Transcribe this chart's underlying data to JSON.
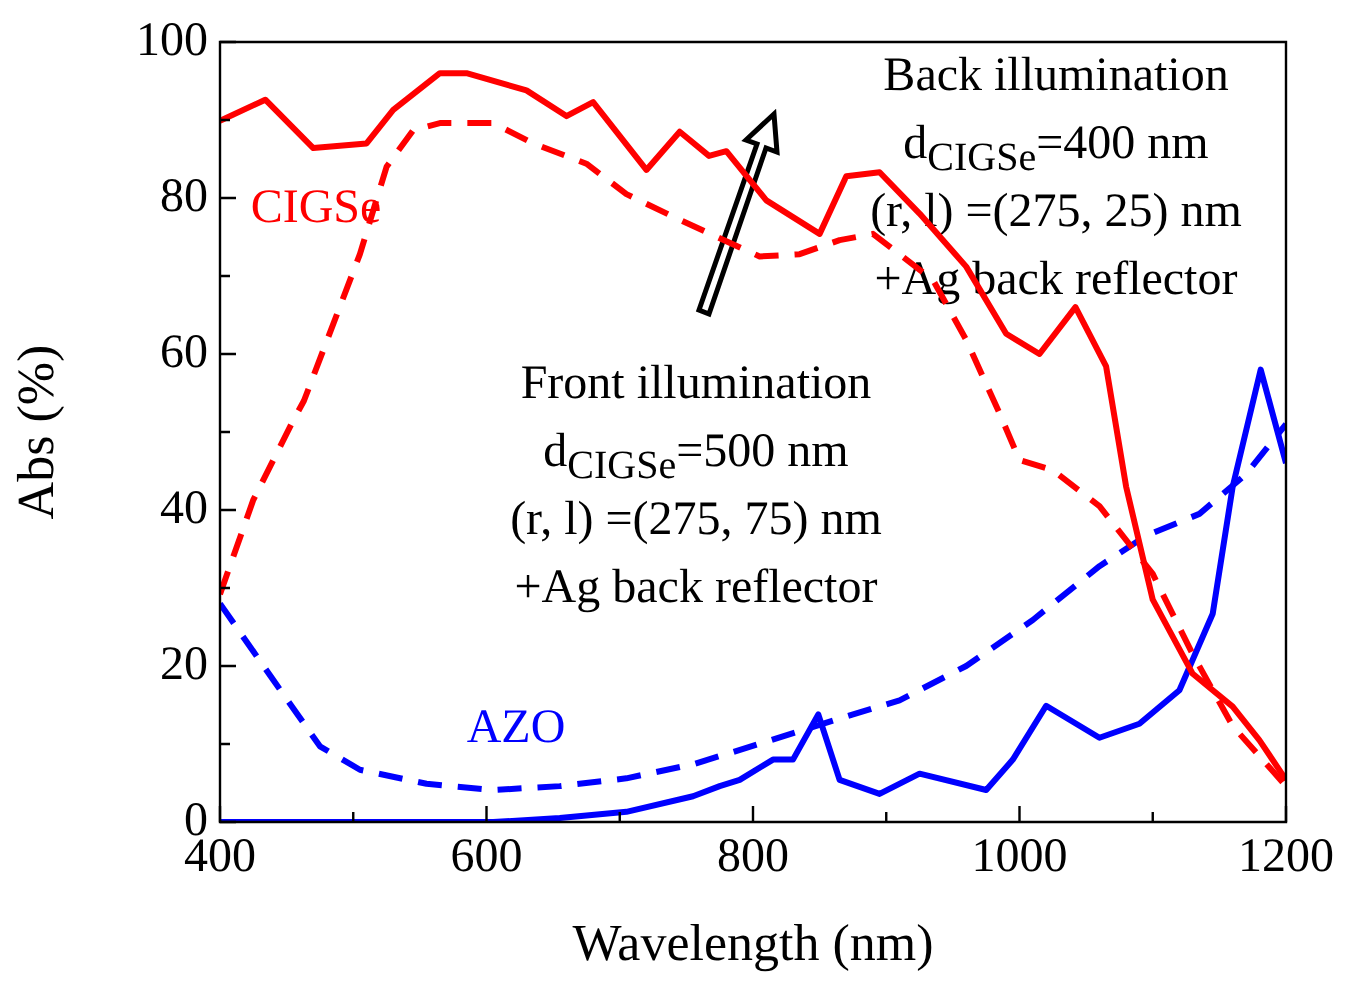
{
  "chart_data": {
    "type": "line",
    "xlabel": "Wavelength (nm)",
    "ylabel": "Abs (%)",
    "xlim": [
      400,
      1200
    ],
    "xticks": [
      400,
      {
        "value": 500,
        "label": null
      },
      600,
      {
        "value": 700,
        "label": null
      },
      800,
      {
        "value": 900,
        "label": null
      },
      1000,
      {
        "value": 1100,
        "label": null
      },
      1200
    ],
    "ylim": [
      0,
      100
    ],
    "yticks": [
      0,
      {
        "value": 10,
        "label": null
      },
      20,
      {
        "value": 30,
        "label": null
      },
      40,
      {
        "value": 50,
        "label": null
      },
      60,
      {
        "value": 70,
        "label": null
      },
      80,
      {
        "value": 90,
        "label": null
      },
      100
    ],
    "marker": "none",
    "legend": false,
    "series": [
      {
        "color": "#ff0000",
        "line_style": "solid",
        "x": [
          400,
          434,
          470,
          510,
          530,
          565,
          585,
          630,
          660,
          680,
          720,
          745,
          767,
          780,
          810,
          850,
          870,
          895,
          925,
          960,
          990,
          1015,
          1042,
          1065,
          1080,
          1100,
          1130,
          1160,
          1180,
          1200
        ],
        "values": [
          89.9,
          92.6,
          86.4,
          87,
          91.3,
          96,
          96,
          93.8,
          90.5,
          92.3,
          83.6,
          88.5,
          85.4,
          86,
          79.7,
          75.4,
          82.8,
          83.3,
          78,
          71.2,
          62.6,
          60,
          66,
          58.4,
          43,
          28.5,
          19,
          14.8,
          10.5,
          5.4
        ]
      },
      {
        "color": "#ff0000",
        "line_style": "dashed",
        "x": [
          400,
          425,
          455,
          463,
          505,
          525,
          545,
          565,
          605,
          635,
          675,
          705,
          745,
          805,
          835,
          865,
          890,
          935,
          960,
          985,
          1000,
          1025,
          1060,
          1100,
          1130,
          1160,
          1200
        ],
        "values": [
          29.2,
          41.3,
          51.5,
          54,
          72.8,
          84,
          88.7,
          89.6,
          89.6,
          87,
          84.4,
          80.5,
          77.2,
          72.5,
          72.8,
          74.6,
          75.4,
          69.5,
          61.8,
          52.4,
          46.4,
          45.1,
          40.5,
          31.8,
          21.5,
          12.3,
          4.6
        ]
      },
      {
        "color": "#0000ff",
        "line_style": "solid",
        "x": [
          400,
          605,
          655,
          705,
          755,
          775,
          790,
          815,
          830,
          849,
          865,
          895,
          925,
          975,
          995,
          1020,
          1060,
          1090,
          1120,
          1145,
          1160,
          1181,
          1200
        ],
        "values": [
          0,
          0,
          0.5,
          1.3,
          3.3,
          4.6,
          5.4,
          8,
          8,
          13.8,
          5.4,
          3.6,
          6.2,
          4.1,
          8,
          14.9,
          10.8,
          12.6,
          16.9,
          26.7,
          43,
          58,
          46
        ]
      },
      {
        "color": "#0000ff",
        "line_style": "dashed",
        "x": [
          400,
          440,
          475,
          505,
          555,
          605,
          655,
          705,
          755,
          795,
          860,
          910,
          960,
          1010,
          1060,
          1095,
          1135,
          1170,
          1200
        ],
        "values": [
          28,
          18.2,
          9.7,
          6.7,
          4.9,
          4.1,
          4.6,
          5.6,
          7.4,
          9.5,
          13,
          15.6,
          20,
          25.9,
          32.8,
          36.7,
          39.5,
          44.6,
          51
        ]
      }
    ],
    "annotations": [
      "CIGSe",
      "AZO",
      "Back illumination",
      "d$_{CIGSe}$=400 nm",
      "(r, l) =(275, 25) nm",
      "+Ag back reflector",
      "Front illumination",
      "d$_{CIGSe}$=500 nm",
      "(r, l) =(275, 75) nm",
      "+Ag back reflector"
    ]
  }
}
